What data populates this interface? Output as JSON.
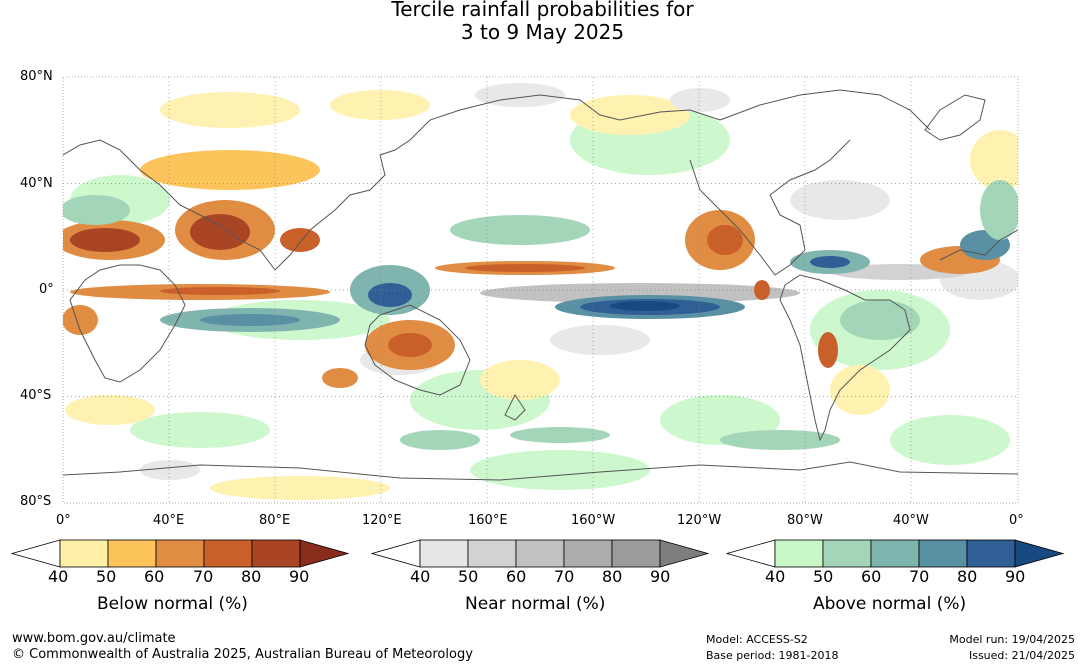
{
  "title": {
    "line1": "Tercile rainfall probabilities for",
    "line2": "3 to 9 May 2025"
  },
  "lat_labels": [
    "80°N",
    "40°N",
    "0°",
    "40°S",
    "80°S"
  ],
  "lon_labels": [
    "0°",
    "40°E",
    "80°E",
    "120°E",
    "160°E",
    "160°W",
    "120°W",
    "80°W",
    "40°W",
    "0°"
  ],
  "legends": [
    {
      "title": "Below normal (%)",
      "ticks": [
        "40",
        "50",
        "60",
        "70",
        "80",
        "90"
      ],
      "colors": [
        "#fff0a8",
        "#fdc45c",
        "#e08c42",
        "#c9602a",
        "#a94524",
        "#8a2c1c"
      ]
    },
    {
      "title": "Near normal (%)",
      "ticks": [
        "40",
        "50",
        "60",
        "70",
        "80",
        "90"
      ],
      "colors": [
        "#e6e6e6",
        "#d2d2d2",
        "#c1c1c1",
        "#adadad",
        "#9b9b9b",
        "#7e7e7e"
      ]
    },
    {
      "title": "Above normal (%)",
      "ticks": [
        "40",
        "50",
        "60",
        "70",
        "80",
        "90"
      ],
      "colors": [
        "#c8f8c8",
        "#a3d6b9",
        "#7fb4af",
        "#5a90a3",
        "#2f5f95",
        "#174a80"
      ]
    }
  ],
  "footer": {
    "url": "www.bom.gov.au/climate",
    "copyright": "© Commonwealth of Australia 2025, Australian Bureau of Meteorology",
    "model": "Model: ACCESS-S2",
    "base_period": "Base period: 1981-2018",
    "model_run": "Model run: 19/04/2025",
    "issued": "Issued: 21/04/2025"
  }
}
